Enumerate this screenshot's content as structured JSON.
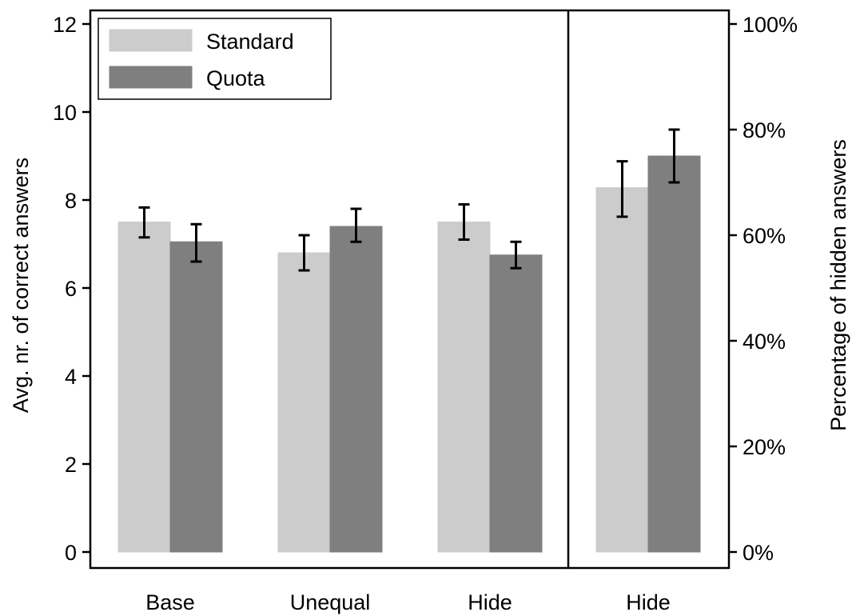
{
  "chart_data": {
    "type": "bar",
    "categories": [
      "Base",
      "Unequal",
      "Hide",
      "Hide"
    ],
    "left_axis": {
      "label": "Avg. nr. of correct answers",
      "ylim": [
        0,
        12
      ],
      "ticks": [
        0,
        2,
        4,
        6,
        8,
        10,
        12
      ],
      "tick_labels": [
        "0",
        "2",
        "4",
        "6",
        "8",
        "10",
        "12"
      ]
    },
    "right_axis": {
      "label": "Percentage of hidden answers",
      "ylim": [
        0,
        1
      ],
      "ticks": [
        0,
        0.2,
        0.4,
        0.6,
        0.8,
        1.0
      ],
      "tick_labels": [
        "0%",
        "20%",
        "40%",
        "60%",
        "80%",
        "100%"
      ]
    },
    "panels": [
      {
        "axis": "left",
        "category_indices": [
          0,
          1,
          2
        ]
      },
      {
        "axis": "right",
        "category_indices": [
          3
        ]
      }
    ],
    "series": [
      {
        "name": "Standard",
        "color": "#cccccc",
        "values": [
          7.5,
          6.8,
          7.5,
          0.69
        ],
        "err_low": [
          7.15,
          6.4,
          7.1,
          0.635
        ],
        "err_high": [
          7.83,
          7.2,
          7.9,
          0.74
        ]
      },
      {
        "name": "Quota",
        "color": "#7f7f7f",
        "values": [
          7.05,
          7.4,
          6.75,
          0.75
        ],
        "err_low": [
          6.6,
          7.05,
          6.45,
          0.7
        ],
        "err_high": [
          7.45,
          7.8,
          7.05,
          0.8
        ]
      }
    ],
    "legend": {
      "position": "top-left"
    },
    "grid": false
  }
}
